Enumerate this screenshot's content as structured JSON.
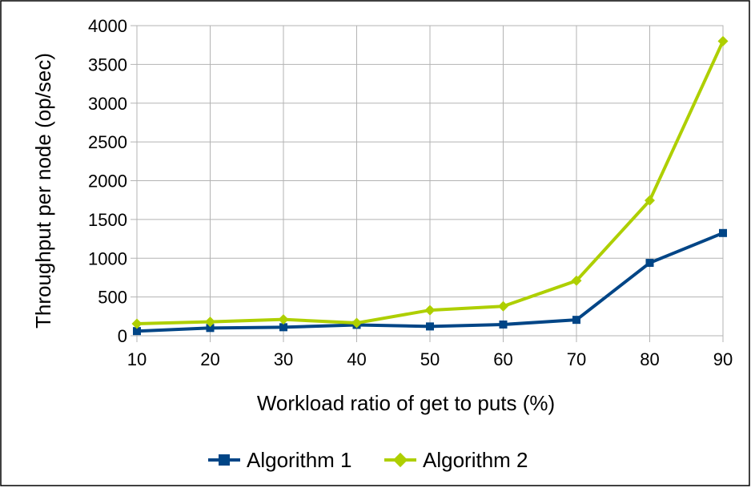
{
  "chart_data": {
    "type": "line",
    "title": "",
    "xlabel": "Workload ratio of get to puts (%)",
    "ylabel": "Throughput per node (op/sec)",
    "x": [
      10,
      20,
      30,
      40,
      50,
      60,
      70,
      80,
      90
    ],
    "x_ticks": [
      "10",
      "20",
      "30",
      "40",
      "50",
      "60",
      "70",
      "80",
      "90"
    ],
    "ylim": [
      0,
      4000
    ],
    "y_ticks": [
      "0",
      "500",
      "1000",
      "1500",
      "2000",
      "2500",
      "3000",
      "3500",
      "4000"
    ],
    "grid": true,
    "legend_position": "bottom",
    "series": [
      {
        "name": "Algorithm 1",
        "color": "#004586",
        "marker": "square",
        "values": [
          60,
          100,
          110,
          140,
          120,
          145,
          205,
          940,
          1325
        ]
      },
      {
        "name": "Algorithm 2",
        "color": "#AECF00",
        "marker": "diamond",
        "values": [
          155,
          180,
          210,
          165,
          330,
          380,
          710,
          1745,
          3800
        ]
      }
    ]
  }
}
